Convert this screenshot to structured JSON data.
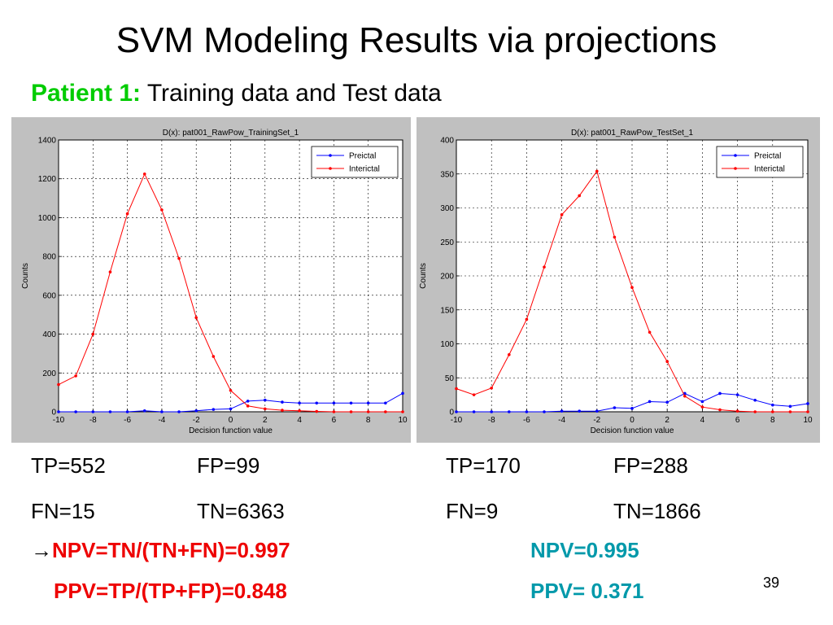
{
  "slide": {
    "title": "SVM Modeling Results via projections",
    "subtitle_patient": "Patient 1:",
    "subtitle_rest": " Training data and Test data",
    "page_number": "39"
  },
  "colors": {
    "preictal": "#0000ff",
    "interictal": "#ff0000",
    "patient": "#00cc00",
    "metric_left": "#ee0000",
    "metric_right": "#0099aa"
  },
  "stats": {
    "left": {
      "tp": "TP=552",
      "fp": "FP=99",
      "fn": "FN=15",
      "tn": "TN=6363",
      "arrow": "→",
      "npv": "NPV=TN/(TN+FN)=0.997",
      "ppv": "PPV=TP/(TP+FP)=0.848"
    },
    "right": {
      "tp": "TP=170",
      "fp": "FP=288",
      "fn": "FN=9",
      "tn": "TN=1866",
      "npv": "NPV=0.995",
      "ppv": "PPV= 0.371"
    }
  },
  "chart_data": [
    {
      "type": "line",
      "title": "D(x): pat001_RawPow_TrainingSet_1",
      "xlabel": "Decision function value",
      "ylabel": "Counts",
      "xlim": [
        -10,
        10
      ],
      "ylim": [
        0,
        1400
      ],
      "xticks": [
        "-10",
        "-8",
        "-6",
        "-4",
        "-2",
        "0",
        "2",
        "4",
        "6",
        "8",
        "10"
      ],
      "yticks": [
        "0",
        "200",
        "400",
        "600",
        "800",
        "1000",
        "1200",
        "1400"
      ],
      "grid": true,
      "legend_position": "top-right",
      "x": [
        -10,
        -9,
        -8,
        -7,
        -6,
        -5,
        -4,
        -3,
        -2,
        -1,
        0,
        1,
        2,
        3,
        4,
        5,
        6,
        7,
        8,
        9,
        10
      ],
      "series": [
        {
          "name": "Preictal",
          "color": "#0000ff",
          "values": [
            0,
            0,
            0,
            0,
            0,
            5,
            0,
            0,
            5,
            12,
            15,
            55,
            60,
            50,
            45,
            45,
            45,
            45,
            45,
            45,
            95
          ]
        },
        {
          "name": "Interictal",
          "color": "#ff0000",
          "values": [
            140,
            185,
            400,
            720,
            1020,
            1225,
            1040,
            790,
            485,
            285,
            110,
            30,
            15,
            8,
            5,
            2,
            0,
            0,
            0,
            0,
            0
          ]
        }
      ]
    },
    {
      "type": "line",
      "title": "D(x): pat001_RawPow_TestSet_1",
      "xlabel": "Decision function value",
      "ylabel": "Counts",
      "xlim": [
        -10,
        10
      ],
      "ylim": [
        0,
        400
      ],
      "xticks": [
        "-10",
        "-8",
        "-6",
        "-4",
        "-2",
        "0",
        "2",
        "4",
        "6",
        "8",
        "10"
      ],
      "yticks": [
        "0",
        "50",
        "100",
        "150",
        "200",
        "250",
        "300",
        "350",
        "400"
      ],
      "grid": true,
      "legend_position": "top-right",
      "x": [
        -10,
        -9,
        -8,
        -7,
        -6,
        -5,
        -4,
        -3,
        -2,
        -1,
        0,
        1,
        2,
        3,
        4,
        5,
        6,
        7,
        8,
        9,
        10
      ],
      "series": [
        {
          "name": "Preictal",
          "color": "#0000ff",
          "values": [
            0,
            0,
            0,
            0,
            0,
            0,
            1,
            1,
            1,
            6,
            5,
            15,
            14,
            27,
            15,
            27,
            25,
            17,
            10,
            8,
            12
          ]
        },
        {
          "name": "Interictal",
          "color": "#ff0000",
          "values": [
            34,
            25,
            35,
            84,
            136,
            213,
            290,
            318,
            354,
            257,
            183,
            117,
            74,
            23,
            7,
            3,
            1,
            0,
            0,
            0,
            0
          ]
        }
      ]
    }
  ]
}
